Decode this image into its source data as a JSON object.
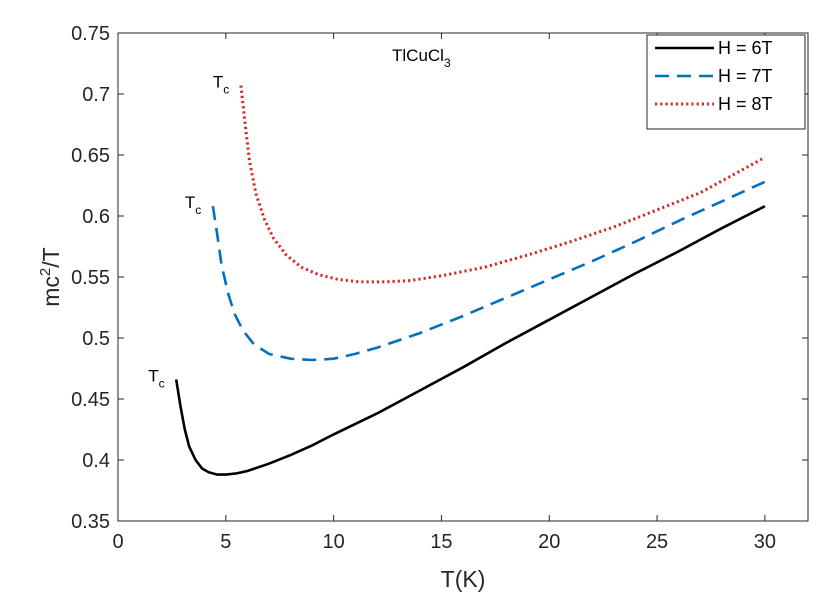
{
  "chart_data": {
    "type": "line",
    "xlabel": "T(K)",
    "ylabel_main": "mc",
    "ylabel_sup": "2",
    "ylabel_rest": "/T",
    "xlim": [
      0,
      32
    ],
    "ylim": [
      0.35,
      0.75
    ],
    "xticks": [
      0,
      5,
      10,
      15,
      20,
      25,
      30
    ],
    "xtick_labels": [
      "0",
      "5",
      "10",
      "15",
      "20",
      "25",
      "30"
    ],
    "yticks": [
      0.35,
      0.4,
      0.45,
      0.5,
      0.55,
      0.6,
      0.65,
      0.7,
      0.75
    ],
    "ytick_labels": [
      "0.35",
      "0.4",
      "0.45",
      "0.5",
      "0.55",
      "0.6",
      "0.65",
      "0.7",
      "0.75"
    ],
    "annotation_main": "TlCuCl",
    "annotation_sub": "3",
    "legend_position": "top-right",
    "series": [
      {
        "name": "H = 6T",
        "color": "#000000",
        "dash": "solid",
        "tc_label": "T",
        "tc_sub": "c",
        "x": [
          2.7,
          2.9,
          3.1,
          3.3,
          3.6,
          3.9,
          4.2,
          4.6,
          5.0,
          5.5,
          6,
          7,
          8,
          9,
          10,
          12,
          14,
          16,
          18,
          20,
          22,
          24,
          26,
          28,
          30
        ],
        "y": [
          0.466,
          0.444,
          0.425,
          0.411,
          0.4,
          0.393,
          0.39,
          0.388,
          0.388,
          0.389,
          0.391,
          0.397,
          0.404,
          0.412,
          0.421,
          0.438,
          0.457,
          0.476,
          0.496,
          0.515,
          0.534,
          0.553,
          0.571,
          0.59,
          0.608
        ]
      },
      {
        "name": "H = 7T",
        "color": "#0072BD",
        "dash": "dashed",
        "tc_label": "T",
        "tc_sub": "c",
        "x": [
          4.4,
          4.6,
          4.8,
          5.1,
          5.4,
          5.8,
          6.3,
          7,
          8,
          9,
          10,
          11,
          12,
          14,
          16,
          18,
          20,
          22,
          24,
          26,
          28,
          30
        ],
        "y": [
          0.608,
          0.585,
          0.56,
          0.537,
          0.52,
          0.506,
          0.495,
          0.487,
          0.483,
          0.482,
          0.483,
          0.487,
          0.492,
          0.504,
          0.518,
          0.533,
          0.548,
          0.563,
          0.579,
          0.596,
          0.612,
          0.628
        ]
      },
      {
        "name": "H = 8T",
        "color": "#D62728",
        "dash": "dotted",
        "tc_label": "T",
        "tc_sub": "c",
        "x": [
          5.7,
          5.9,
          6.1,
          6.4,
          6.8,
          7.2,
          7.8,
          8.5,
          9.3,
          10.2,
          11.2,
          12.3,
          13.5,
          15,
          17,
          19,
          21,
          23,
          25,
          27,
          30
        ],
        "y": [
          0.707,
          0.675,
          0.645,
          0.618,
          0.597,
          0.582,
          0.568,
          0.558,
          0.552,
          0.548,
          0.546,
          0.546,
          0.547,
          0.551,
          0.558,
          0.568,
          0.579,
          0.591,
          0.605,
          0.619,
          0.648
        ]
      }
    ]
  }
}
